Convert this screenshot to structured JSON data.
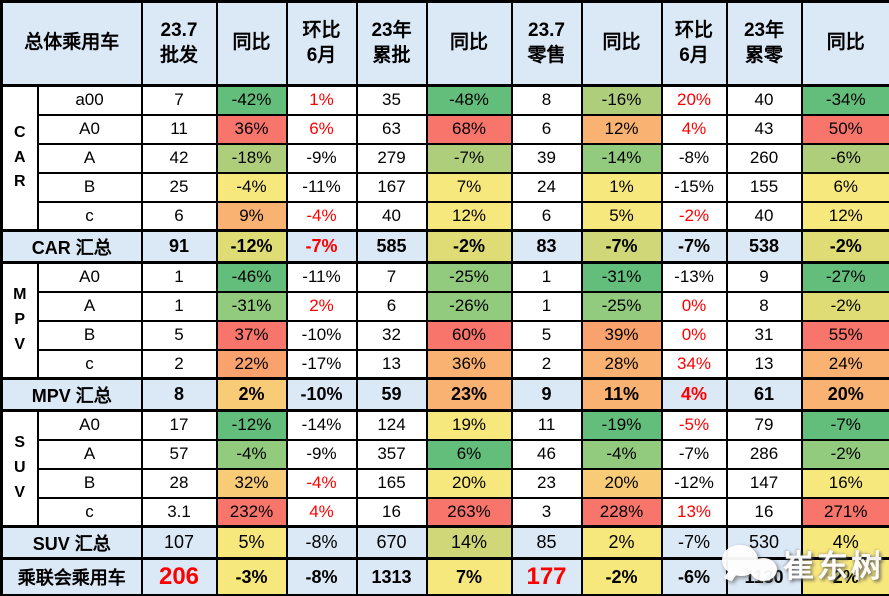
{
  "palette": {
    "g1": "#63BE7B",
    "g2": "#92CA7E",
    "yg": "#AFCE7C",
    "dyg": "#CFD779",
    "dy": "#DFDC75",
    "y": "#F7E87E",
    "yo": "#F8CB76",
    "o": "#F9B271",
    "do": "#FAA26E",
    "r": "#F8756C",
    "red_text": "#FE0000",
    "header_bg": "#DBE8F6",
    "border_black": "#000000"
  },
  "watermark": {
    "text": "崔东树",
    "icon": "wechat-chat-bubbles"
  },
  "chart_data": {
    "type": "table",
    "headers": [
      "总体乘用车",
      "23.7\n批发",
      "同比",
      "环比\n6月",
      "23年\n累批",
      "同比",
      "23.7\n零售",
      "同比",
      "环比\n6月",
      "23年\n累零",
      "同比"
    ],
    "sections": [
      {
        "group": "CAR",
        "rows": [
          {
            "label": "a00",
            "cells": [
              {
                "t": "7"
              },
              {
                "t": "-42%",
                "bg": "g1"
              },
              {
                "t": "1%",
                "fg": "red"
              },
              {
                "t": "35"
              },
              {
                "t": "-48%",
                "bg": "g1"
              },
              {
                "t": "8"
              },
              {
                "t": "-16%",
                "bg": "yg"
              },
              {
                "t": "20%",
                "fg": "red"
              },
              {
                "t": "40"
              },
              {
                "t": "-34%",
                "bg": "g1"
              }
            ]
          },
          {
            "label": "A0",
            "cells": [
              {
                "t": "11"
              },
              {
                "t": "36%",
                "bg": "r"
              },
              {
                "t": "6%",
                "fg": "red"
              },
              {
                "t": "63"
              },
              {
                "t": "68%",
                "bg": "r"
              },
              {
                "t": "6"
              },
              {
                "t": "12%",
                "bg": "o"
              },
              {
                "t": "4%",
                "fg": "red"
              },
              {
                "t": "43"
              },
              {
                "t": "50%",
                "bg": "r"
              }
            ]
          },
          {
            "label": "A",
            "cells": [
              {
                "t": "42"
              },
              {
                "t": "-18%",
                "bg": "yg"
              },
              {
                "t": "-9%"
              },
              {
                "t": "279"
              },
              {
                "t": "-7%",
                "bg": "yg"
              },
              {
                "t": "39"
              },
              {
                "t": "-14%",
                "bg": "g2"
              },
              {
                "t": "-8%"
              },
              {
                "t": "260"
              },
              {
                "t": "-6%",
                "bg": "yg"
              }
            ]
          },
          {
            "label": "B",
            "cells": [
              {
                "t": "25"
              },
              {
                "t": "-4%",
                "bg": "y"
              },
              {
                "t": "-11%"
              },
              {
                "t": "167"
              },
              {
                "t": "7%",
                "bg": "y"
              },
              {
                "t": "24"
              },
              {
                "t": "1%",
                "bg": "y"
              },
              {
                "t": "-15%"
              },
              {
                "t": "155"
              },
              {
                "t": "6%",
                "bg": "y"
              }
            ]
          },
          {
            "label": "c",
            "cells": [
              {
                "t": "6"
              },
              {
                "t": "9%",
                "bg": "o"
              },
              {
                "t": "-4%",
                "fg": "red"
              },
              {
                "t": "40"
              },
              {
                "t": "12%",
                "bg": "y"
              },
              {
                "t": "6"
              },
              {
                "t": "5%",
                "bg": "y"
              },
              {
                "t": "-2%",
                "fg": "red"
              },
              {
                "t": "40"
              },
              {
                "t": "12%",
                "bg": "y"
              }
            ]
          }
        ],
        "summary": {
          "label": "CAR 汇总",
          "value_bold": true,
          "cells": [
            {
              "t": "91"
            },
            {
              "t": "-12%",
              "bg": "dy"
            },
            {
              "t": "-7%",
              "fg": "red"
            },
            {
              "t": "585"
            },
            {
              "t": "-2%",
              "bg": "dy"
            },
            {
              "t": "83"
            },
            {
              "t": "-7%",
              "bg": "dyg"
            },
            {
              "t": "-7%"
            },
            {
              "t": "538"
            },
            {
              "t": "-2%",
              "bg": "dy"
            }
          ]
        }
      },
      {
        "group": "MPV",
        "rows": [
          {
            "label": "A0",
            "cells": [
              {
                "t": "1"
              },
              {
                "t": "-46%",
                "bg": "g1"
              },
              {
                "t": "-11%"
              },
              {
                "t": "7"
              },
              {
                "t": "-25%",
                "bg": "g2"
              },
              {
                "t": "1"
              },
              {
                "t": "-31%",
                "bg": "g1"
              },
              {
                "t": "-13%"
              },
              {
                "t": "9"
              },
              {
                "t": "-27%",
                "bg": "g1"
              }
            ]
          },
          {
            "label": "A",
            "cells": [
              {
                "t": "1"
              },
              {
                "t": "-31%",
                "bg": "g2"
              },
              {
                "t": "2%",
                "fg": "red"
              },
              {
                "t": "6"
              },
              {
                "t": "-26%",
                "bg": "g2"
              },
              {
                "t": "1"
              },
              {
                "t": "-25%",
                "bg": "g2"
              },
              {
                "t": "0%",
                "fg": "red"
              },
              {
                "t": "8"
              },
              {
                "t": "-2%",
                "bg": "dy"
              }
            ]
          },
          {
            "label": "B",
            "cells": [
              {
                "t": "5"
              },
              {
                "t": "37%",
                "bg": "r"
              },
              {
                "t": "-10%"
              },
              {
                "t": "32"
              },
              {
                "t": "60%",
                "bg": "r"
              },
              {
                "t": "5"
              },
              {
                "t": "39%",
                "bg": "do"
              },
              {
                "t": "0%",
                "fg": "red"
              },
              {
                "t": "31"
              },
              {
                "t": "55%",
                "bg": "r"
              }
            ]
          },
          {
            "label": "c",
            "cells": [
              {
                "t": "2"
              },
              {
                "t": "22%",
                "bg": "do"
              },
              {
                "t": "-17%"
              },
              {
                "t": "13"
              },
              {
                "t": "36%",
                "bg": "o"
              },
              {
                "t": "2"
              },
              {
                "t": "28%",
                "bg": "o"
              },
              {
                "t": "34%",
                "fg": "red"
              },
              {
                "t": "13"
              },
              {
                "t": "24%",
                "bg": "o"
              }
            ]
          }
        ],
        "summary": {
          "label": "MPV 汇总",
          "value_bold": true,
          "cells": [
            {
              "t": "8"
            },
            {
              "t": "2%",
              "bg": "yo"
            },
            {
              "t": "-10%"
            },
            {
              "t": "59"
            },
            {
              "t": "23%",
              "bg": "o"
            },
            {
              "t": "9"
            },
            {
              "t": "11%",
              "bg": "o"
            },
            {
              "t": "4%",
              "fg": "red"
            },
            {
              "t": "61"
            },
            {
              "t": "20%",
              "bg": "o"
            }
          ]
        }
      },
      {
        "group": "SUV",
        "rows": [
          {
            "label": "A0",
            "cells": [
              {
                "t": "17"
              },
              {
                "t": "-12%",
                "bg": "g1"
              },
              {
                "t": "-14%"
              },
              {
                "t": "124"
              },
              {
                "t": "19%",
                "bg": "y"
              },
              {
                "t": "11"
              },
              {
                "t": "-19%",
                "bg": "g1"
              },
              {
                "t": "-5%",
                "fg": "red"
              },
              {
                "t": "79"
              },
              {
                "t": "-7%",
                "bg": "g1"
              }
            ]
          },
          {
            "label": "A",
            "cells": [
              {
                "t": "57"
              },
              {
                "t": "-4%",
                "bg": "g2"
              },
              {
                "t": "-9%"
              },
              {
                "t": "357"
              },
              {
                "t": "6%",
                "bg": "g1"
              },
              {
                "t": "46"
              },
              {
                "t": "-4%",
                "bg": "g2"
              },
              {
                "t": "-7%"
              },
              {
                "t": "286"
              },
              {
                "t": "-2%",
                "bg": "g2"
              }
            ]
          },
          {
            "label": "B",
            "cells": [
              {
                "t": "28"
              },
              {
                "t": "32%",
                "bg": "yo"
              },
              {
                "t": "-4%",
                "fg": "red"
              },
              {
                "t": "165"
              },
              {
                "t": "20%",
                "bg": "y"
              },
              {
                "t": "23"
              },
              {
                "t": "20%",
                "bg": "yo"
              },
              {
                "t": "-12%"
              },
              {
                "t": "147"
              },
              {
                "t": "16%",
                "bg": "y"
              }
            ]
          },
          {
            "label": "c",
            "cells": [
              {
                "t": "3.1"
              },
              {
                "t": "232%",
                "bg": "r"
              },
              {
                "t": "4%",
                "fg": "red"
              },
              {
                "t": "16"
              },
              {
                "t": "263%",
                "bg": "r"
              },
              {
                "t": "3"
              },
              {
                "t": "228%",
                "bg": "r"
              },
              {
                "t": "13%",
                "fg": "red"
              },
              {
                "t": "16"
              },
              {
                "t": "271%",
                "bg": "r"
              }
            ]
          }
        ],
        "summary": {
          "label": "SUV 汇总",
          "value_bold": false,
          "cells": [
            {
              "t": "107"
            },
            {
              "t": "5%",
              "bg": "y"
            },
            {
              "t": "-8%"
            },
            {
              "t": "670"
            },
            {
              "t": "14%",
              "bg": "dyg"
            },
            {
              "t": "85"
            },
            {
              "t": "2%",
              "bg": "y"
            },
            {
              "t": "-7%"
            },
            {
              "t": "530"
            },
            {
              "t": "4%",
              "bg": "y"
            }
          ]
        }
      }
    ],
    "total": {
      "label": "乘联会乘用车",
      "cells": [
        {
          "t": "206",
          "fg": "red",
          "big": true
        },
        {
          "t": "-3%",
          "bg": "y"
        },
        {
          "t": "-8%"
        },
        {
          "t": "1313"
        },
        {
          "t": "7%",
          "bg": "y"
        },
        {
          "t": "177",
          "fg": "red",
          "big": true
        },
        {
          "t": "-2%",
          "bg": "y"
        },
        {
          "t": "-6%"
        },
        {
          "t": "1130"
        },
        {
          "t": "2%",
          "bg": "y"
        }
      ]
    }
  }
}
